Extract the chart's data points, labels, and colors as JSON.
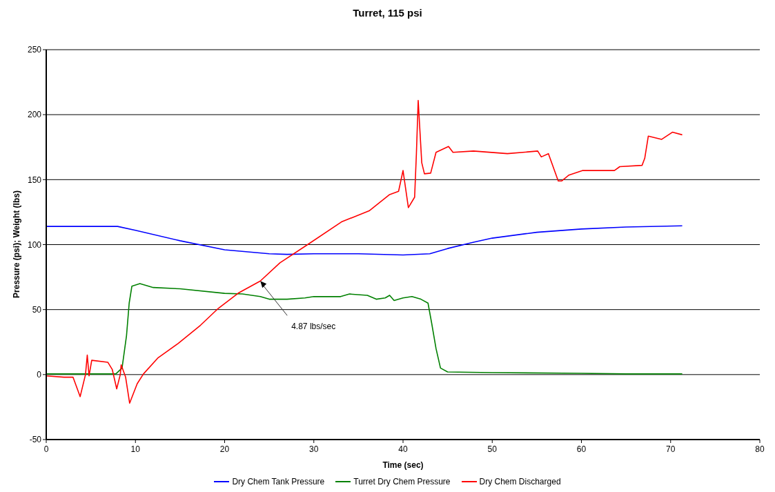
{
  "chart_data": {
    "type": "line",
    "title": "Turret, 115 psi",
    "xlabel": "Time (sec)",
    "ylabel": "Pressure (psi); Weight (lbs)",
    "xlim": [
      0,
      80
    ],
    "xticks": [
      0,
      10,
      20,
      30,
      40,
      50,
      60,
      70,
      80
    ],
    "ylim": [
      -50,
      250
    ],
    "yticks": [
      -50,
      0,
      50,
      100,
      150,
      200,
      250
    ],
    "grid": "y",
    "legend": "bottom",
    "marker": "none",
    "line_style": "solid",
    "annotations": [
      {
        "text": "4.87 lbs/sec",
        "x": 24,
        "y": 72
      }
    ],
    "series": [
      {
        "name": "Dry Chem Tank Pressure",
        "color": "#0000ff",
        "x": [
          0,
          8,
          10,
          15,
          20,
          25,
          27,
          30,
          35,
          40,
          43,
          45,
          48,
          50,
          55,
          60,
          65,
          71.3
        ],
        "values": [
          114,
          114,
          111,
          103,
          96,
          93,
          92.5,
          93,
          93,
          92,
          93,
          97,
          102,
          105,
          109.5,
          112,
          113.5,
          114.5
        ]
      },
      {
        "name": "Turret Dry Chem Pressure",
        "color": "#008000",
        "x": [
          0,
          7.8,
          8.5,
          9,
          9.3,
          9.6,
          10.5,
          12,
          15,
          20,
          22,
          24,
          25,
          27,
          29,
          30,
          33,
          34,
          36,
          37,
          38,
          38.5,
          39,
          40,
          41,
          42,
          42.8,
          43.2,
          43.7,
          44.2,
          45,
          50,
          60,
          65,
          71.3
        ],
        "values": [
          0.5,
          0.5,
          5,
          30,
          55,
          68,
          70,
          67,
          66,
          62.5,
          62,
          60,
          58,
          58,
          59,
          60,
          60,
          62,
          61,
          58,
          59,
          61,
          57,
          59,
          60,
          58,
          55,
          40,
          20,
          5,
          2,
          1.5,
          1,
          0.5,
          0.5
        ]
      },
      {
        "name": "Dry Chem Discharged",
        "color": "#ff0000",
        "x": [
          0,
          2,
          3,
          3.8,
          4.4,
          4.6,
          4.8,
          5.1,
          6.9,
          7.4,
          7.9,
          8.3,
          8.4,
          8.9,
          9.35,
          10.2,
          10.9,
          12.5,
          14.8,
          17.3,
          19.3,
          21.6,
          24,
          26.2,
          29.3,
          33.1,
          36.2,
          38.5,
          39.5,
          40,
          40.6,
          41.3,
          41.5,
          41.7,
          42.1,
          42.4,
          43.1,
          43.7,
          45.1,
          45.6,
          47.9,
          51.7,
          55.1,
          55.5,
          56.3,
          57.4,
          57.8,
          58.6,
          60.1,
          63.7,
          64.3,
          66.8,
          67.1,
          67.5,
          69,
          70.2,
          71.3
        ],
        "values": [
          -1,
          -2,
          -2,
          -17,
          0,
          15,
          -1,
          11,
          9.5,
          4,
          -11,
          0,
          7.5,
          -2,
          -22,
          -7,
          0.5,
          12.7,
          24,
          38,
          51,
          63,
          72,
          86,
          100,
          117.5,
          126,
          138.5,
          141,
          157,
          128.5,
          136.5,
          170,
          211,
          163,
          154.5,
          155,
          171,
          175.5,
          171,
          172,
          170,
          172,
          167.5,
          170,
          149,
          149,
          153.5,
          157,
          157,
          160,
          161,
          166.5,
          183.5,
          181,
          186.5,
          184.5
        ]
      }
    ]
  }
}
